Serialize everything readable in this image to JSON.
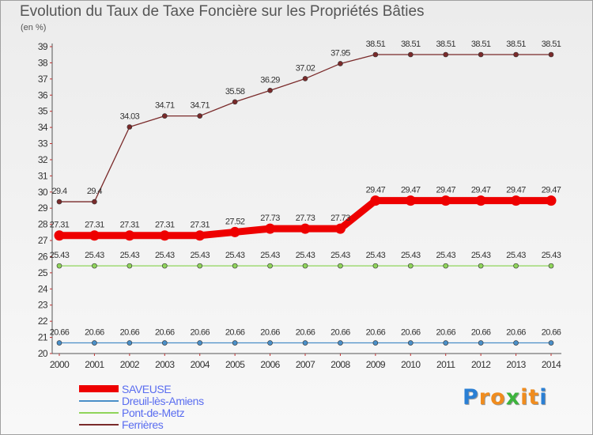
{
  "chart_data": {
    "type": "line",
    "title": "Evolution du Taux de Taxe Foncière sur les Propriétés Bâties",
    "ylabel": "(en %)",
    "xlabel": "",
    "x": [
      "2000",
      "2001",
      "2002",
      "2003",
      "2004",
      "2005",
      "2006",
      "2007",
      "2008",
      "2009",
      "2010",
      "2011",
      "2012",
      "2013",
      "2014"
    ],
    "ylim": [
      20,
      39
    ],
    "yticks": [
      20,
      21,
      22,
      23,
      24,
      25,
      26,
      27,
      28,
      29,
      30,
      31,
      32,
      33,
      34,
      35,
      36,
      37,
      38,
      39
    ],
    "grid": false,
    "legend_position": "bottom-left",
    "series": [
      {
        "name": "SAVEUSE",
        "color": "#ee0000",
        "values": [
          27.31,
          27.31,
          27.31,
          27.31,
          27.31,
          27.52,
          27.73,
          27.73,
          27.73,
          29.47,
          29.47,
          29.47,
          29.47,
          29.47,
          29.47
        ],
        "labels": [
          "27.31",
          "27.31",
          "27.31",
          "27.31",
          "27.31",
          "27.52",
          "27.73",
          "27.73",
          "27.73",
          "29.47",
          "29.47",
          "29.47",
          "29.47",
          "29.47",
          "29.47"
        ]
      },
      {
        "name": "Dreuil-lès-Amiens",
        "color": "#4a8fc8",
        "values": [
          20.66,
          20.66,
          20.66,
          20.66,
          20.66,
          20.66,
          20.66,
          20.66,
          20.66,
          20.66,
          20.66,
          20.66,
          20.66,
          20.66,
          20.66
        ],
        "labels": [
          "20.66",
          "20.66",
          "20.66",
          "20.66",
          "20.66",
          "20.66",
          "20.66",
          "20.66",
          "20.66",
          "20.66",
          "20.66",
          "20.66",
          "20.66",
          "20.66",
          "20.66"
        ]
      },
      {
        "name": "Pont-de-Metz",
        "color": "#8fd45a",
        "values": [
          25.43,
          25.43,
          25.43,
          25.43,
          25.43,
          25.43,
          25.43,
          25.43,
          25.43,
          25.43,
          25.43,
          25.43,
          25.43,
          25.43,
          25.43
        ],
        "labels": [
          "25.43",
          "25.43",
          "25.43",
          "25.43",
          "25.43",
          "25.43",
          "25.43",
          "25.43",
          "25.43",
          "25.43",
          "25.43",
          "25.43",
          "25.43",
          "25.43",
          "25.43"
        ]
      },
      {
        "name": "Ferrières",
        "color": "#7a2a2a",
        "values": [
          29.4,
          29.4,
          34.03,
          34.71,
          34.71,
          35.58,
          36.29,
          37.02,
          37.95,
          38.51,
          38.51,
          38.51,
          38.51,
          38.51,
          38.51
        ],
        "labels": [
          "29.4",
          "29.4",
          "34.03",
          "34.71",
          "34.71",
          "35.58",
          "36.29",
          "37.02",
          "37.95",
          "38.51",
          "38.51",
          "38.51",
          "38.51",
          "38.51",
          "38.51"
        ]
      }
    ]
  },
  "logo": {
    "letters": [
      "P",
      "r",
      "o",
      "x",
      "i",
      "t",
      "i"
    ],
    "colors": [
      "#2a7fd4",
      "#f08c1e",
      "#f08c1e",
      "#3db43d",
      "#f08c1e",
      "#f08c1e",
      "#2a7fd4"
    ]
  }
}
